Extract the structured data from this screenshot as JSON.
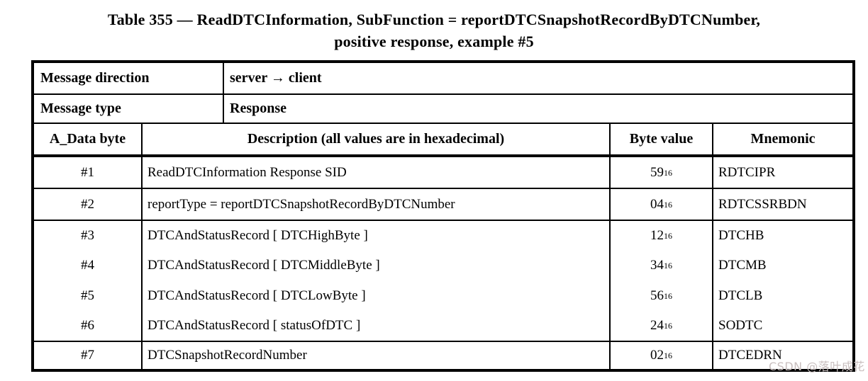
{
  "title": {
    "line1": "Table 355 — ReadDTCInformation, SubFunction = reportDTCSnapshotRecordByDTCNumber,",
    "line2": "positive response, example #5"
  },
  "meta": {
    "rows": [
      {
        "label": "Message direction",
        "value": "server → client"
      },
      {
        "label": "Message type",
        "value": "Response"
      }
    ]
  },
  "header": {
    "byte": "A_Data byte",
    "description": "Description (all values are in hexadecimal)",
    "value": "Byte value",
    "mnemonic": "Mnemonic"
  },
  "rows": [
    {
      "num": "#1",
      "description": "ReadDTCInformation Response SID",
      "value": "59",
      "base": "16",
      "mnemonic": "RDTCIPR"
    },
    {
      "num": "#2",
      "description": "reportType = reportDTCSnapshotRecordByDTCNumber",
      "value": "04",
      "base": "16",
      "mnemonic": "RDTCSSRBDN"
    },
    {
      "num": "#3",
      "description": "DTCAndStatusRecord [ DTCHighByte ]",
      "value": "12",
      "base": "16",
      "mnemonic": "DTCHB"
    },
    {
      "num": "#4",
      "description": "DTCAndStatusRecord [ DTCMiddleByte ]",
      "value": "34",
      "base": "16",
      "mnemonic": "DTCMB"
    },
    {
      "num": "#5",
      "description": "DTCAndStatusRecord [ DTCLowByte ]",
      "value": "56",
      "base": "16",
      "mnemonic": "DTCLB"
    },
    {
      "num": "#6",
      "description": "DTCAndStatusRecord [ statusOfDTC ]",
      "value": "24",
      "base": "16",
      "mnemonic": "SODTC"
    },
    {
      "num": "#7",
      "description": "DTCSnapshotRecordNumber",
      "value": "02",
      "base": "16",
      "mnemonic": "DTCEDRN"
    }
  ],
  "watermark": "CSDN @落叶成花",
  "colors": {
    "border": "#000000",
    "text": "#000000",
    "background": "#ffffff",
    "watermark": "#c9bfbf"
  }
}
